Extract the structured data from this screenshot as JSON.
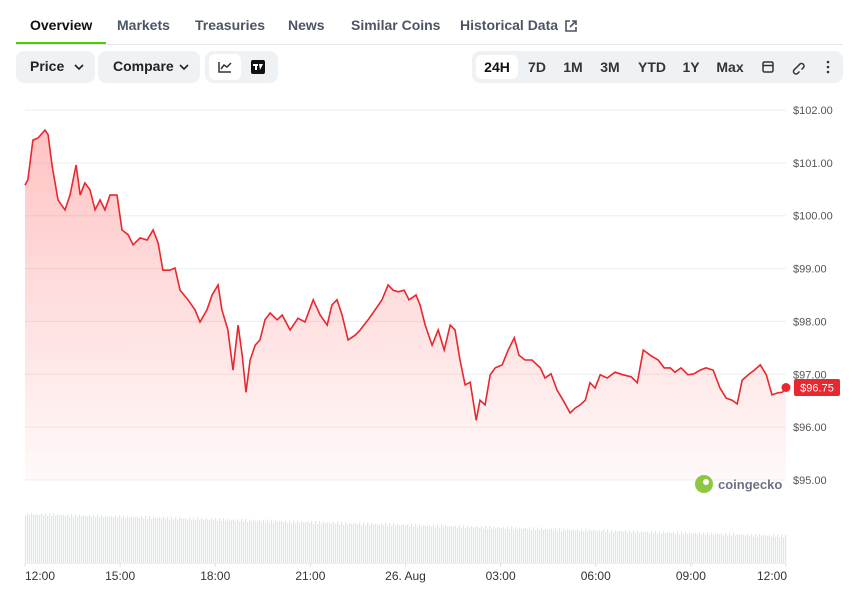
{
  "tabs": [
    "Overview",
    "Markets",
    "Treasuries",
    "News",
    "Similar Coins",
    "Historical Data"
  ],
  "active_tab": 0,
  "dropdowns": [
    "Price",
    "Compare"
  ],
  "ranges": [
    "24H",
    "7D",
    "1M",
    "3M",
    "YTD",
    "1Y",
    "Max"
  ],
  "active_range": 0,
  "watermark": "coingecko",
  "chart_data": {
    "type": "line",
    "color": "#e8272e",
    "grid": true,
    "x": [
      0,
      0.09,
      0.25,
      0.41,
      0.63,
      0.73,
      0.85,
      1.04,
      1.26,
      1.42,
      1.61,
      1.74,
      1.89,
      2.05,
      2.21,
      2.37,
      2.52,
      2.68,
      2.9,
      3.06,
      3.25,
      3.41,
      3.63,
      3.85,
      4.04,
      4.2,
      4.35,
      4.57,
      4.73,
      4.89,
      5.14,
      5.36,
      5.52,
      5.74,
      5.9,
      6.09,
      6.21,
      6.4,
      6.56,
      6.72,
      6.85,
      6.97,
      7.1,
      7.26,
      7.41,
      7.57,
      7.73,
      7.95,
      8.11,
      8.36,
      8.61,
      8.83,
      9.09,
      9.31,
      9.53,
      9.68,
      9.84,
      10,
      10.19,
      10.41,
      10.57,
      10.82,
      11.04,
      11.26,
      11.45,
      11.61,
      11.77,
      11.96,
      12.11,
      12.33,
      12.46,
      12.62,
      12.84,
      13.03,
      13.22,
      13.41,
      13.56,
      13.72,
      13.88,
      14.04,
      14.23,
      14.35,
      14.51,
      14.67,
      14.83,
      15.05,
      15.24,
      15.43,
      15.58,
      15.77,
      15.99,
      16.25,
      16.4,
      16.59,
      16.78,
      16.97,
      17.19,
      17.35,
      17.51,
      17.67,
      17.82,
      17.98,
      18.14,
      18.36,
      18.61,
      18.86,
      19.12,
      19.31,
      19.5,
      19.72,
      19.97,
      20.16,
      20.35,
      20.5,
      20.69,
      20.91,
      21.1,
      21.29,
      21.48,
      21.7,
      21.92,
      22.11,
      22.3,
      22.46,
      22.62,
      22.81,
      23,
      23.19,
      23.38,
      23.56,
      23.75,
      23.88,
      24
    ],
    "values": [
      100.58,
      100.68,
      101.43,
      101.47,
      101.62,
      101.53,
      100.96,
      100.3,
      100.11,
      100.39,
      100.96,
      100.39,
      100.62,
      100.49,
      100.11,
      100.3,
      100.11,
      100.39,
      100.39,
      99.73,
      99.64,
      99.45,
      99.58,
      99.54,
      99.73,
      99.48,
      98.97,
      98.97,
      99.01,
      98.59,
      98.41,
      98.22,
      97.99,
      98.22,
      98.5,
      98.69,
      98.22,
      97.84,
      97.08,
      97.93,
      97.36,
      96.66,
      97.27,
      97.55,
      97.65,
      98.03,
      98.16,
      98.03,
      98.12,
      97.84,
      98.06,
      97.99,
      98.41,
      98.12,
      97.93,
      98.31,
      98.41,
      98.12,
      97.65,
      97.74,
      97.84,
      98.03,
      98.22,
      98.41,
      98.69,
      98.59,
      98.56,
      98.59,
      98.41,
      98.5,
      98.31,
      97.93,
      97.55,
      97.84,
      97.46,
      97.93,
      97.84,
      97.27,
      96.8,
      96.85,
      96.13,
      96.51,
      96.42,
      96.99,
      97.12,
      97.18,
      97.46,
      97.69,
      97.36,
      97.27,
      97.27,
      97.12,
      96.93,
      97.01,
      96.7,
      96.51,
      96.27,
      96.36,
      96.42,
      96.51,
      96.84,
      96.74,
      96.99,
      96.93,
      97.04,
      96.99,
      96.95,
      96.84,
      97.46,
      97.36,
      97.27,
      97.12,
      97.12,
      97.04,
      97.12,
      96.99,
      97.01,
      97.08,
      97.12,
      97.08,
      96.74,
      96.55,
      96.51,
      96.44,
      96.89,
      96.99,
      97.08,
      97.18,
      96.99,
      96.61,
      96.65,
      96.66,
      96.75
    ],
    "last_label": "$96.75",
    "xlim": [
      0,
      24
    ],
    "ylim": [
      95,
      102
    ],
    "xticks": [
      {
        "value": 0,
        "label": "12:00"
      },
      {
        "value": 3,
        "label": "15:00"
      },
      {
        "value": 6,
        "label": "18:00"
      },
      {
        "value": 9,
        "label": "21:00"
      },
      {
        "value": 12,
        "label": "26. Aug"
      },
      {
        "value": 15,
        "label": "03:00"
      },
      {
        "value": 18,
        "label": "06:00"
      },
      {
        "value": 21,
        "label": "09:00"
      },
      {
        "value": 24,
        "label": "12:00"
      }
    ],
    "yticks": [
      {
        "value": 95,
        "label": "$95.00"
      },
      {
        "value": 96,
        "label": "$96.00"
      },
      {
        "value": 97,
        "label": "$97.00"
      },
      {
        "value": 98,
        "label": "$98.00"
      },
      {
        "value": 99,
        "label": "$99.00"
      },
      {
        "value": 100,
        "label": "$100.00"
      },
      {
        "value": 101,
        "label": "$101.00"
      },
      {
        "value": 102,
        "label": "$102.00"
      }
    ]
  }
}
